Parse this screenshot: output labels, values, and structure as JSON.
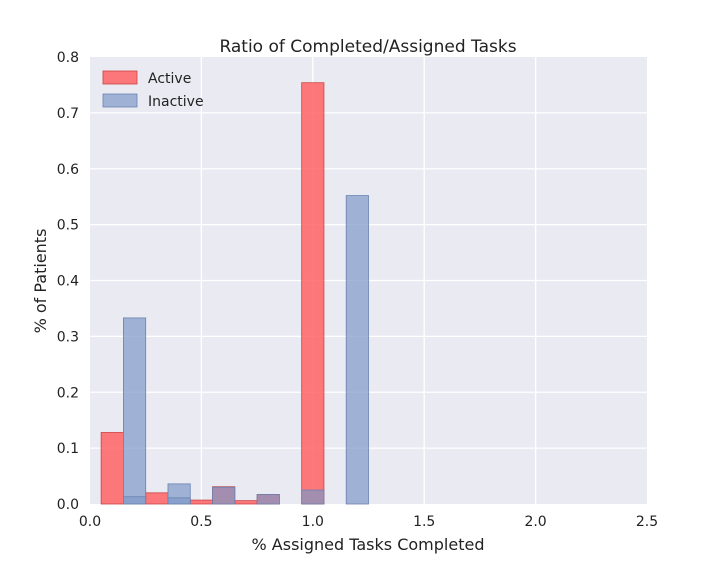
{
  "chart_data": {
    "type": "bar",
    "title": "Ratio of Completed/Assigned Tasks",
    "xlabel": "% Assigned Tasks Completed",
    "ylabel": "% of Patients",
    "xlim": [
      0,
      2.5
    ],
    "ylim": [
      0,
      0.8
    ],
    "xticks": [
      "0.0",
      "0.5",
      "1.0",
      "1.5",
      "2.0",
      "2.5"
    ],
    "yticks": [
      "0.0",
      "0.1",
      "0.2",
      "0.3",
      "0.4",
      "0.5",
      "0.6",
      "0.7",
      "0.8"
    ],
    "grid": true,
    "legend_position": "top-left",
    "series": [
      {
        "name": "Active",
        "color": "#ff5a5a",
        "bars": [
          {
            "x0": 0.05,
            "x1": 0.15,
            "value": 0.128
          },
          {
            "x0": 0.25,
            "x1": 0.35,
            "value": 0.02
          },
          {
            "x0": 0.45,
            "x1": 0.55,
            "value": 0.007
          },
          {
            "x0": 0.55,
            "x1": 0.65,
            "value": 0.031
          },
          {
            "x0": 0.65,
            "x1": 0.75,
            "value": 0.006
          },
          {
            "x0": 0.75,
            "x1": 0.85,
            "value": 0.017
          },
          {
            "x0": 0.95,
            "x1": 1.05,
            "value": 0.754
          }
        ]
      },
      {
        "name": "Inactive",
        "color": "#7f98c8",
        "bars": [
          {
            "x0": 0.15,
            "x1": 0.25,
            "value": 0.333
          },
          {
            "x0": 0.15,
            "x1": 0.25,
            "value": 0.013
          },
          {
            "x0": 0.35,
            "x1": 0.45,
            "value": 0.036
          },
          {
            "x0": 0.35,
            "x1": 0.45,
            "value": 0.011
          },
          {
            "x0": 0.55,
            "x1": 0.65,
            "value": 0.03
          },
          {
            "x0": 0.75,
            "x1": 0.85,
            "value": 0.017
          },
          {
            "x0": 0.95,
            "x1": 1.05,
            "value": 0.025
          },
          {
            "x0": 1.15,
            "x1": 1.25,
            "value": 0.552
          }
        ]
      }
    ]
  }
}
